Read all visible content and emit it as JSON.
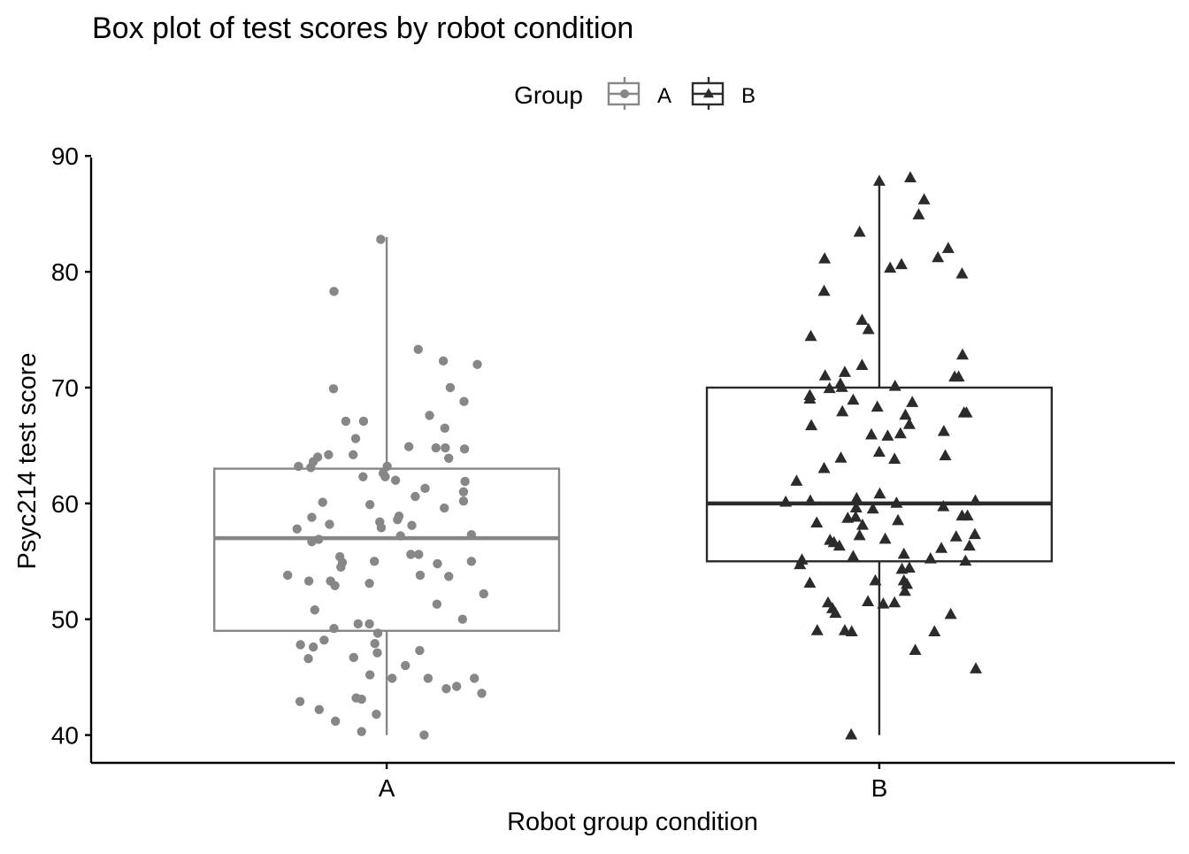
{
  "chart_data": {
    "type": "boxplot",
    "title": "Box plot of test scores by robot condition",
    "xlabel": "Robot group condition",
    "ylabel": "Psyc214 test score",
    "ylim": [
      37.6,
      90.4
    ],
    "yticks": [
      40,
      50,
      60,
      70,
      80,
      90
    ],
    "categories": [
      "A",
      "B"
    ],
    "grid": false,
    "legend": {
      "title": "Group",
      "position": "top",
      "entries": [
        "A",
        "B"
      ]
    },
    "colors": {
      "A": "#878787",
      "B": "#2b2b2b"
    },
    "markers": {
      "A": "circle",
      "B": "triangle"
    },
    "boxes": [
      {
        "name": "A",
        "min": 40,
        "q1": 49,
        "median": 57,
        "q3": 63,
        "max": 83
      },
      {
        "name": "B",
        "min": 40,
        "q1": 55,
        "median": 60,
        "q3": 70,
        "max": 88
      }
    ],
    "points": {
      "A": [
        {
          "x": -0.107,
          "y": 78.3
        },
        {
          "x": -0.012,
          "y": 82.8
        },
        {
          "x": 0.064,
          "y": 73.3
        },
        {
          "x": 0.115,
          "y": 72.3
        },
        {
          "x": 0.184,
          "y": 72.0
        },
        {
          "x": -0.108,
          "y": 69.9
        },
        {
          "x": 0.129,
          "y": 70.0
        },
        {
          "x": 0.157,
          "y": 68.8
        },
        {
          "x": 0.087,
          "y": 67.6
        },
        {
          "x": -0.083,
          "y": 67.1
        },
        {
          "x": -0.047,
          "y": 67.1
        },
        {
          "x": 0.118,
          "y": 66.5
        },
        {
          "x": -0.063,
          "y": 65.6
        },
        {
          "x": 0.045,
          "y": 64.9
        },
        {
          "x": 0.1,
          "y": 64.8
        },
        {
          "x": 0.119,
          "y": 64.8
        },
        {
          "x": 0.158,
          "y": 64.7
        },
        {
          "x": -0.118,
          "y": 64.2
        },
        {
          "x": -0.14,
          "y": 64.0
        },
        {
          "x": -0.068,
          "y": 64.2
        },
        {
          "x": 0.126,
          "y": 63.9
        },
        {
          "x": -0.149,
          "y": 63.6
        },
        {
          "x": -0.179,
          "y": 63.2
        },
        {
          "x": -0.154,
          "y": 63.1
        },
        {
          "x": 0.001,
          "y": 63.2
        },
        {
          "x": -0.007,
          "y": 62.6
        },
        {
          "x": -0.048,
          "y": 62.3
        },
        {
          "x": -0.003,
          "y": 62.3
        },
        {
          "x": 0.018,
          "y": 62.0
        },
        {
          "x": 0.159,
          "y": 61.9
        },
        {
          "x": 0.156,
          "y": 61.0
        },
        {
          "x": 0.078,
          "y": 61.3
        },
        {
          "x": 0.058,
          "y": 60.6
        },
        {
          "x": 0.156,
          "y": 60.2
        },
        {
          "x": -0.13,
          "y": 60.1
        },
        {
          "x": -0.034,
          "y": 59.9
        },
        {
          "x": 0.117,
          "y": 59.6
        },
        {
          "x": 0.025,
          "y": 58.9
        },
        {
          "x": 0.022,
          "y": 58.6
        },
        {
          "x": -0.152,
          "y": 58.8
        },
        {
          "x": -0.116,
          "y": 58.2
        },
        {
          "x": -0.014,
          "y": 58.4
        },
        {
          "x": -0.011,
          "y": 57.9
        },
        {
          "x": 0.051,
          "y": 58.1
        },
        {
          "x": -0.182,
          "y": 57.8
        },
        {
          "x": -0.138,
          "y": 56.9
        },
        {
          "x": -0.152,
          "y": 56.7
        },
        {
          "x": 0.028,
          "y": 57.2
        },
        {
          "x": 0.172,
          "y": 57.3
        },
        {
          "x": 0.049,
          "y": 55.6
        },
        {
          "x": 0.065,
          "y": 55.6
        },
        {
          "x": -0.095,
          "y": 55.4
        },
        {
          "x": -0.09,
          "y": 54.9
        },
        {
          "x": -0.093,
          "y": 54.5
        },
        {
          "x": -0.025,
          "y": 55.0
        },
        {
          "x": 0.103,
          "y": 54.8
        },
        {
          "x": 0.172,
          "y": 55.0
        },
        {
          "x": -0.201,
          "y": 53.8
        },
        {
          "x": -0.158,
          "y": 53.3
        },
        {
          "x": -0.114,
          "y": 53.3
        },
        {
          "x": -0.105,
          "y": 52.9
        },
        {
          "x": -0.035,
          "y": 53.1
        },
        {
          "x": 0.068,
          "y": 53.8
        },
        {
          "x": 0.126,
          "y": 53.7
        },
        {
          "x": 0.197,
          "y": 52.2
        },
        {
          "x": 0.102,
          "y": 51.3
        },
        {
          "x": -0.146,
          "y": 50.8
        },
        {
          "x": 0.154,
          "y": 50.0
        },
        {
          "x": -0.058,
          "y": 49.6
        },
        {
          "x": -0.035,
          "y": 49.6
        },
        {
          "x": -0.107,
          "y": 49.2
        },
        {
          "x": -0.018,
          "y": 48.8
        },
        {
          "x": -0.127,
          "y": 48.2
        },
        {
          "x": -0.175,
          "y": 47.8
        },
        {
          "x": -0.149,
          "y": 47.6
        },
        {
          "x": -0.024,
          "y": 47.9
        },
        {
          "x": 0.067,
          "y": 47.3
        },
        {
          "x": -0.067,
          "y": 46.7
        },
        {
          "x": -0.159,
          "y": 46.6
        },
        {
          "x": -0.019,
          "y": 47.1
        },
        {
          "x": 0.038,
          "y": 46.0
        },
        {
          "x": -0.034,
          "y": 45.2
        },
        {
          "x": 0.011,
          "y": 44.9
        },
        {
          "x": 0.084,
          "y": 44.9
        },
        {
          "x": 0.121,
          "y": 44.0
        },
        {
          "x": 0.142,
          "y": 44.2
        },
        {
          "x": 0.178,
          "y": 44.9
        },
        {
          "x": 0.193,
          "y": 43.6
        },
        {
          "x": -0.062,
          "y": 43.2
        },
        {
          "x": -0.051,
          "y": 43.1
        },
        {
          "x": -0.176,
          "y": 42.9
        },
        {
          "x": -0.137,
          "y": 42.2
        },
        {
          "x": -0.021,
          "y": 41.8
        },
        {
          "x": -0.104,
          "y": 41.2
        },
        {
          "x": -0.051,
          "y": 40.3
        },
        {
          "x": 0.076,
          "y": 40.0
        }
      ],
      "B": [
        {
          "x": 0.063,
          "y": 88.1
        },
        {
          "x": 0.0,
          "y": 87.8
        },
        {
          "x": 0.091,
          "y": 86.2
        },
        {
          "x": 0.08,
          "y": 84.9
        },
        {
          "x": -0.04,
          "y": 83.4
        },
        {
          "x": 0.14,
          "y": 82.0
        },
        {
          "x": 0.119,
          "y": 81.2
        },
        {
          "x": -0.111,
          "y": 81.1
        },
        {
          "x": 0.045,
          "y": 80.6
        },
        {
          "x": 0.022,
          "y": 80.3
        },
        {
          "x": 0.168,
          "y": 79.8
        },
        {
          "x": -0.112,
          "y": 78.3
        },
        {
          "x": -0.035,
          "y": 75.8
        },
        {
          "x": -0.022,
          "y": 75.0
        },
        {
          "x": -0.139,
          "y": 74.4
        },
        {
          "x": 0.169,
          "y": 72.8
        },
        {
          "x": -0.035,
          "y": 71.9
        },
        {
          "x": -0.07,
          "y": 71.3
        },
        {
          "x": -0.11,
          "y": 71.0
        },
        {
          "x": 0.153,
          "y": 70.9
        },
        {
          "x": 0.161,
          "y": 70.9
        },
        {
          "x": -0.079,
          "y": 70.3
        },
        {
          "x": -0.076,
          "y": 70.0
        },
        {
          "x": 0.032,
          "y": 70.1
        },
        {
          "x": -0.101,
          "y": 69.9
        },
        {
          "x": -0.141,
          "y": 69.3
        },
        {
          "x": -0.141,
          "y": 69.0
        },
        {
          "x": -0.053,
          "y": 68.9
        },
        {
          "x": -0.004,
          "y": 68.3
        },
        {
          "x": 0.067,
          "y": 68.7
        },
        {
          "x": -0.075,
          "y": 67.9
        },
        {
          "x": 0.053,
          "y": 67.6
        },
        {
          "x": 0.172,
          "y": 67.8
        },
        {
          "x": 0.177,
          "y": 67.8
        },
        {
          "x": 0.061,
          "y": 66.8
        },
        {
          "x": -0.138,
          "y": 66.7
        },
        {
          "x": 0.131,
          "y": 66.2
        },
        {
          "x": 0.043,
          "y": 66.0
        },
        {
          "x": 0.017,
          "y": 65.8
        },
        {
          "x": -0.016,
          "y": 65.9
        },
        {
          "x": 0.0,
          "y": 64.4
        },
        {
          "x": 0.134,
          "y": 64.1
        },
        {
          "x": -0.078,
          "y": 63.9
        },
        {
          "x": 0.031,
          "y": 63.8
        },
        {
          "x": -0.112,
          "y": 63.0
        },
        {
          "x": -0.168,
          "y": 61.9
        },
        {
          "x": -0.14,
          "y": 60.2
        },
        {
          "x": -0.19,
          "y": 60.1
        },
        {
          "x": -0.046,
          "y": 60.4
        },
        {
          "x": 0.001,
          "y": 60.8
        },
        {
          "x": 0.035,
          "y": 60.0
        },
        {
          "x": 0.13,
          "y": 59.7
        },
        {
          "x": 0.195,
          "y": 60.2
        },
        {
          "x": -0.047,
          "y": 59.6
        },
        {
          "x": -0.013,
          "y": 59.5
        },
        {
          "x": -0.127,
          "y": 58.3
        },
        {
          "x": -0.064,
          "y": 58.7
        },
        {
          "x": -0.048,
          "y": 58.8
        },
        {
          "x": -0.034,
          "y": 58.1
        },
        {
          "x": 0.038,
          "y": 58.5
        },
        {
          "x": 0.168,
          "y": 58.9
        },
        {
          "x": 0.179,
          "y": 58.9
        },
        {
          "x": -0.04,
          "y": 57.2
        },
        {
          "x": 0.012,
          "y": 56.9
        },
        {
          "x": -0.1,
          "y": 56.8
        },
        {
          "x": -0.092,
          "y": 56.6
        },
        {
          "x": -0.081,
          "y": 56.3
        },
        {
          "x": 0.156,
          "y": 57.1
        },
        {
          "x": 0.194,
          "y": 57.3
        },
        {
          "x": 0.126,
          "y": 56.1
        },
        {
          "x": 0.183,
          "y": 56.3
        },
        {
          "x": 0.05,
          "y": 55.6
        },
        {
          "x": -0.157,
          "y": 55.1
        },
        {
          "x": -0.161,
          "y": 54.7
        },
        {
          "x": -0.053,
          "y": 55.4
        },
        {
          "x": 0.104,
          "y": 55.2
        },
        {
          "x": 0.175,
          "y": 55.0
        },
        {
          "x": 0.046,
          "y": 54.3
        },
        {
          "x": 0.061,
          "y": 54.4
        },
        {
          "x": -0.141,
          "y": 53.1
        },
        {
          "x": -0.008,
          "y": 53.3
        },
        {
          "x": 0.05,
          "y": 53.3
        },
        {
          "x": 0.056,
          "y": 53.0
        },
        {
          "x": 0.052,
          "y": 52.4
        },
        {
          "x": -0.104,
          "y": 51.4
        },
        {
          "x": -0.095,
          "y": 50.9
        },
        {
          "x": -0.089,
          "y": 50.5
        },
        {
          "x": -0.023,
          "y": 51.5
        },
        {
          "x": 0.008,
          "y": 51.3
        },
        {
          "x": 0.031,
          "y": 51.4
        },
        {
          "x": 0.145,
          "y": 50.4
        },
        {
          "x": -0.126,
          "y": 49.0
        },
        {
          "x": -0.07,
          "y": 49.0
        },
        {
          "x": -0.056,
          "y": 48.9
        },
        {
          "x": 0.112,
          "y": 48.9
        },
        {
          "x": 0.073,
          "y": 47.3
        },
        {
          "x": 0.196,
          "y": 45.7
        },
        {
          "x": -0.057,
          "y": 40.0
        }
      ]
    }
  }
}
